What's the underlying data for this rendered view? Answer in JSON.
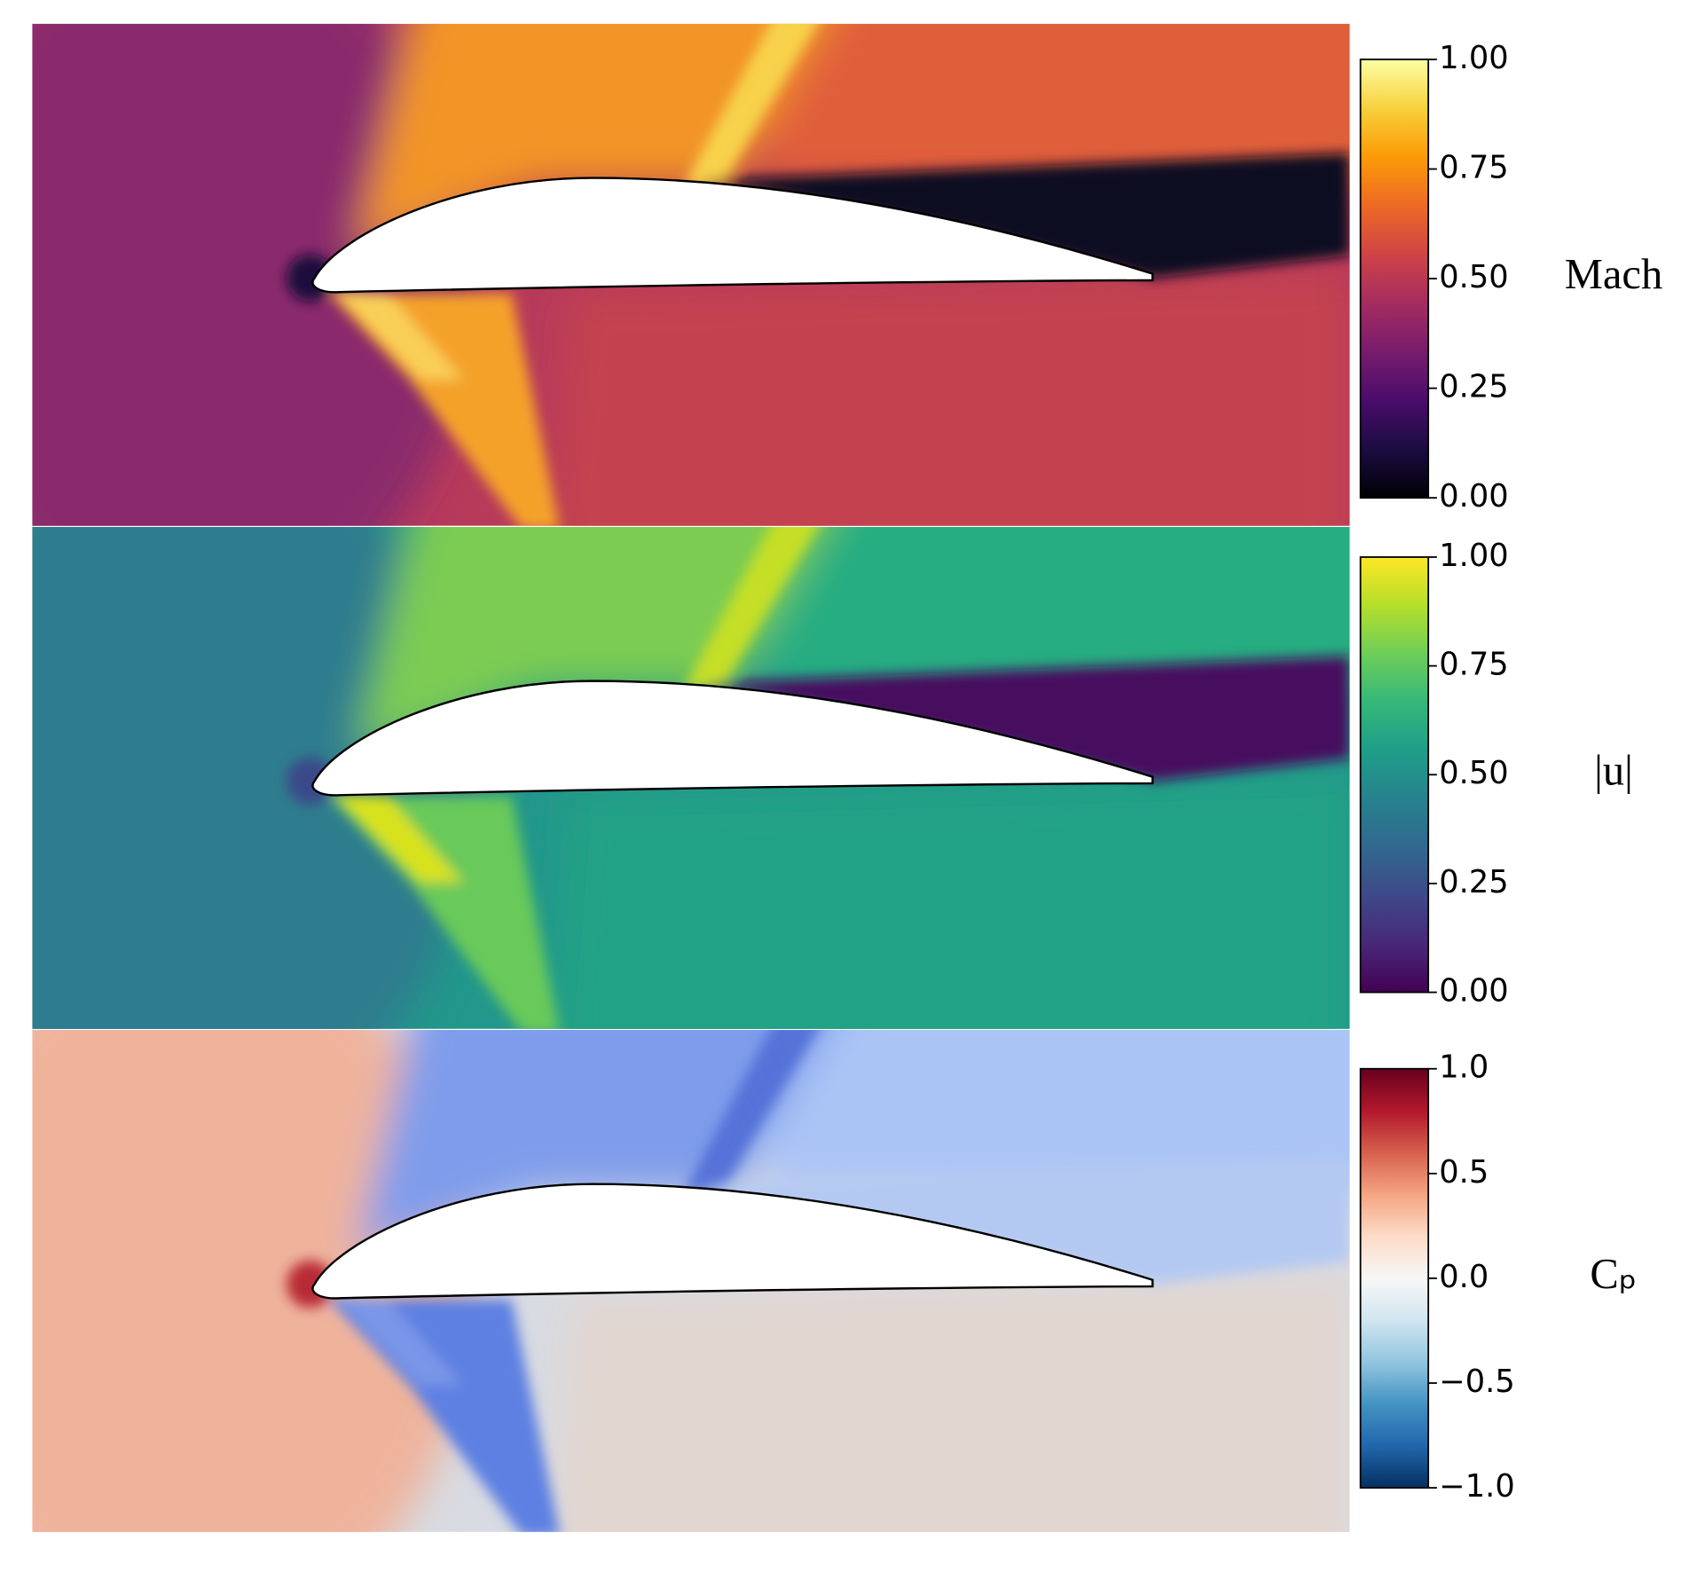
{
  "chart_data": [
    {
      "type": "heatmap",
      "colorbar_label": "Mach",
      "colormap": "inferno",
      "clim": [
        0,
        1
      ],
      "cticks": [
        {
          "value": 0,
          "label": "0.00"
        },
        {
          "value": 0.25,
          "label": "0.25"
        },
        {
          "value": 0.5,
          "label": "0.50"
        },
        {
          "value": 0.75,
          "label": "0.75"
        },
        {
          "value": 1,
          "label": "1.00"
        }
      ]
    },
    {
      "type": "heatmap",
      "colorbar_label": "|u|",
      "colormap": "viridis",
      "clim": [
        0,
        1
      ],
      "cticks": [
        {
          "value": 0,
          "label": "0.00"
        },
        {
          "value": 0.25,
          "label": "0.25"
        },
        {
          "value": 0.5,
          "label": "0.50"
        },
        {
          "value": 0.75,
          "label": "0.75"
        },
        {
          "value": 1,
          "label": "1.00"
        }
      ]
    },
    {
      "type": "heatmap",
      "colorbar_label": "Cₚ",
      "colormap": "RdBu_r",
      "clim": [
        -1,
        1
      ],
      "cticks": [
        {
          "value": -1,
          "label": "−1.0"
        },
        {
          "value": -0.5,
          "label": "−0.5"
        },
        {
          "value": 0,
          "label": "0.0"
        },
        {
          "value": 0.5,
          "label": "0.5"
        },
        {
          "value": 1,
          "label": "1.0"
        }
      ]
    }
  ]
}
